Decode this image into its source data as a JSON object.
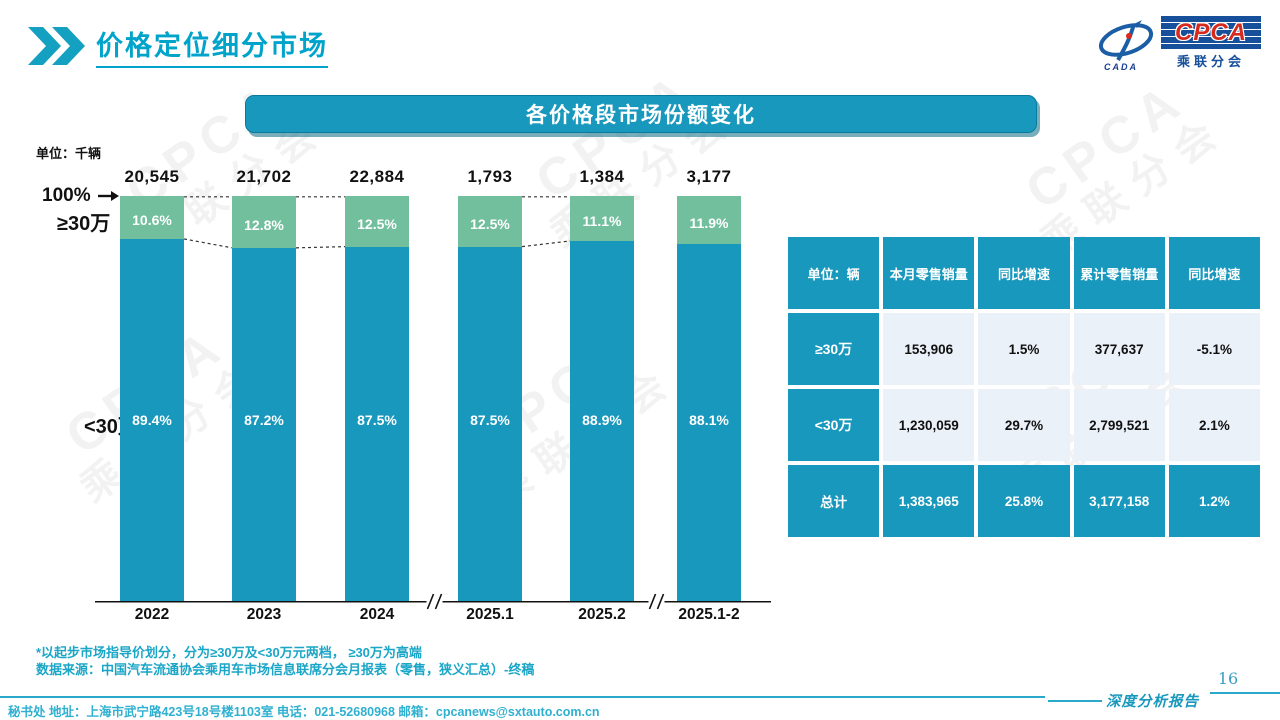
{
  "header": {
    "title": "价格定位细分市场",
    "logo": {
      "cpca": "CPCA",
      "subtitle": "乘联分会",
      "cada": "CADA"
    }
  },
  "banner": {
    "title": "各价格段市场份额变化"
  },
  "chart_labels": {
    "unit": "单位：千辆",
    "axis_100": "100%",
    "series_high": "≥30万",
    "series_low": "<30万"
  },
  "chart_data": {
    "type": "bar",
    "stacked": true,
    "title": "各价格段市场份额变化",
    "unit": "千辆",
    "ylim": [
      0,
      100
    ],
    "categories": [
      "2022",
      "2023",
      "2024",
      "2025.1",
      "2025.2",
      "2025.1-2"
    ],
    "totals": [
      "20,545",
      "21,702",
      "22,884",
      "1,793",
      "1,384",
      "3,177"
    ],
    "series": [
      {
        "name": "≥30万",
        "color": "#72BF9E",
        "values": [
          10.6,
          12.8,
          12.5,
          12.5,
          11.1,
          11.9
        ]
      },
      {
        "name": "<30万",
        "color": "#1898BC",
        "values": [
          89.4,
          87.2,
          87.5,
          87.5,
          88.9,
          88.1
        ]
      }
    ],
    "axis_breaks_between": [
      [
        2,
        3
      ],
      [
        4,
        5
      ]
    ],
    "connectors_between": [
      [
        0,
        1
      ],
      [
        1,
        2
      ],
      [
        3,
        4
      ]
    ]
  },
  "table": {
    "unit_header": "单位：辆",
    "columns": [
      "本月零售销量",
      "同比增速",
      "累计零售销量",
      "同比增速"
    ],
    "rows": [
      {
        "label": "≥30万",
        "values": [
          "153,906",
          "1.5%",
          "377,637",
          "-5.1%"
        ],
        "highlight": false
      },
      {
        "label": "<30万",
        "values": [
          "1,230,059",
          "29.7%",
          "2,799,521",
          "2.1%"
        ],
        "highlight": false
      },
      {
        "label": "总计",
        "values": [
          "1,383,965",
          "25.8%",
          "3,177,158",
          "1.2%"
        ],
        "highlight": true
      }
    ]
  },
  "footnotes": {
    "line1": "*以起步市场指导价划分，分为≥30万及<30万元两档， ≥30万为高端",
    "line2": "数据来源：中国汽车流通协会乘用车市场信息联席分会月报表（零售，狭义汇总）-终稿"
  },
  "footer": {
    "text": "秘书处  地址：上海市武宁路423号18号楼1103室 电话：021-52680968  邮箱：cpcanews@sxtauto.com.cn"
  },
  "page": {
    "number": "16",
    "report_label": "深度分析报告"
  },
  "watermark": {
    "line1": "CPCA",
    "line2": "乘联分会"
  },
  "colors": {
    "teal": "#1898BC",
    "green": "#72BF9E",
    "title_teal": "#00A3C9",
    "light_cell": "#EBF1F8",
    "footnote_teal": "#1BA6C7"
  }
}
